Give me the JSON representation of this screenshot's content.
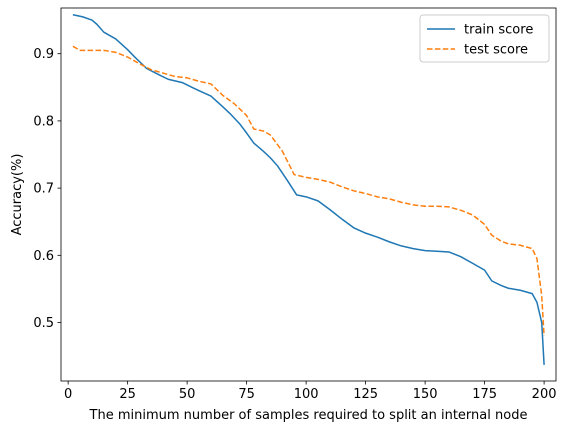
{
  "chart_data": {
    "type": "line",
    "title": "",
    "xlabel": "The minimum number of samples required to split an internal node",
    "ylabel": "Accuracy(%)",
    "xlim": [
      -3,
      205
    ],
    "ylim": [
      0.413,
      0.968
    ],
    "xticks": [
      0,
      25,
      50,
      75,
      100,
      125,
      150,
      175,
      200
    ],
    "yticks": [
      0.5,
      0.6,
      0.7,
      0.8,
      0.9
    ],
    "ytick_labels": [
      "0.5",
      "0.6",
      "0.7",
      "0.8",
      "0.9"
    ],
    "grid": false,
    "legend_position": "top-right",
    "colors": {
      "train": "#1f77b4",
      "test": "#ff7f0e"
    },
    "series": [
      {
        "name": "train score",
        "style": "solid",
        "x": [
          2,
          6,
          10,
          12,
          15,
          20,
          25,
          28,
          33,
          38,
          42,
          48,
          52,
          55,
          60,
          65,
          68,
          72,
          75,
          78,
          82,
          85,
          88,
          92,
          96,
          100,
          105,
          110,
          115,
          120,
          125,
          130,
          135,
          140,
          145,
          150,
          155,
          160,
          165,
          170,
          175,
          178,
          182,
          185,
          190,
          195,
          197,
          199,
          200
        ],
        "y": [
          0.958,
          0.955,
          0.95,
          0.944,
          0.932,
          0.922,
          0.906,
          0.895,
          0.878,
          0.869,
          0.862,
          0.857,
          0.85,
          0.845,
          0.837,
          0.821,
          0.811,
          0.796,
          0.782,
          0.767,
          0.755,
          0.745,
          0.733,
          0.712,
          0.69,
          0.687,
          0.681,
          0.668,
          0.654,
          0.641,
          0.633,
          0.627,
          0.62,
          0.614,
          0.61,
          0.607,
          0.606,
          0.605,
          0.598,
          0.588,
          0.578,
          0.562,
          0.555,
          0.551,
          0.548,
          0.543,
          0.53,
          0.5,
          0.437
        ]
      },
      {
        "name": "test score",
        "style": "dashed",
        "x": [
          2,
          5,
          10,
          15,
          20,
          25,
          30,
          35,
          40,
          45,
          50,
          55,
          60,
          65,
          70,
          75,
          78,
          82,
          85,
          90,
          95,
          100,
          105,
          110,
          115,
          120,
          125,
          130,
          135,
          140,
          145,
          150,
          155,
          160,
          165,
          170,
          175,
          178,
          182,
          185,
          190,
          195,
          197,
          199,
          200
        ],
        "y": [
          0.911,
          0.905,
          0.905,
          0.905,
          0.902,
          0.895,
          0.885,
          0.876,
          0.871,
          0.866,
          0.864,
          0.859,
          0.855,
          0.838,
          0.825,
          0.808,
          0.788,
          0.785,
          0.779,
          0.755,
          0.72,
          0.716,
          0.713,
          0.709,
          0.702,
          0.696,
          0.692,
          0.687,
          0.684,
          0.679,
          0.675,
          0.673,
          0.673,
          0.672,
          0.667,
          0.66,
          0.646,
          0.63,
          0.621,
          0.617,
          0.615,
          0.61,
          0.595,
          0.54,
          0.48
        ]
      }
    ]
  }
}
